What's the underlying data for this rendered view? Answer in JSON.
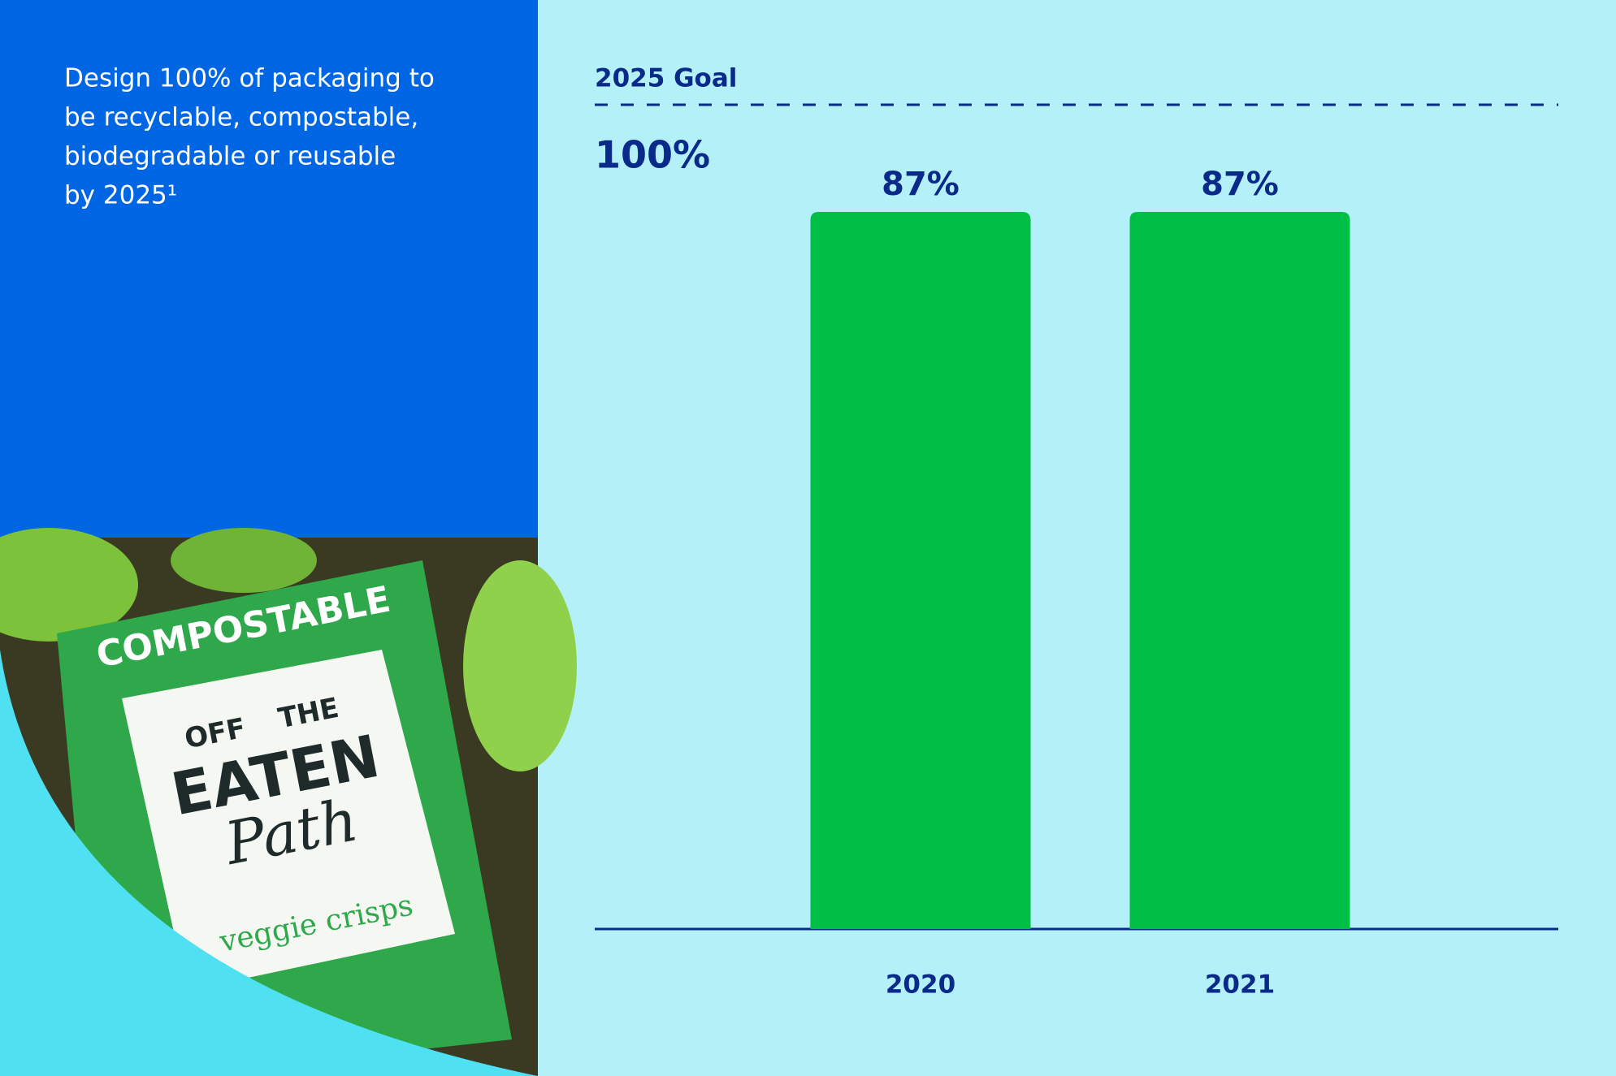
{
  "chart_data": {
    "type": "bar",
    "title_lines": [
      "Design 100% of packaging to",
      "be recyclable, compostable,",
      "biodegradable or reusable",
      "by 2025¹"
    ],
    "goal_label": "2025 Goal",
    "categories": [
      "2020",
      "2021"
    ],
    "values": [
      87,
      87
    ],
    "value_labels": [
      "87%",
      "87%"
    ],
    "color": "#00bf46",
    "ylim": [
      0,
      100
    ],
    "yticks": [
      {
        "value": 100,
        "label": "100%"
      }
    ],
    "grid": true
  },
  "photo": {
    "texts": [
      "COMPOSTABLE",
      "OFF",
      "THE",
      "EATEN",
      "Path",
      "veggie crisps"
    ]
  }
}
